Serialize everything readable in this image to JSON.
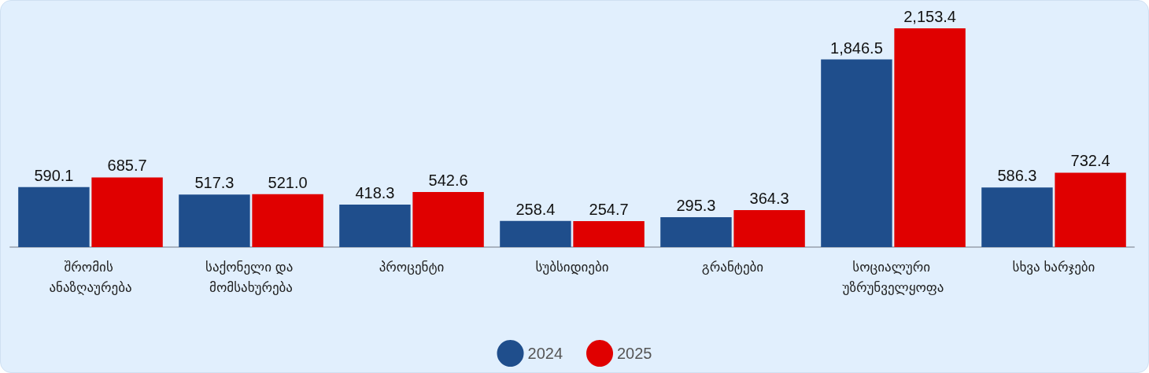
{
  "chart_data": {
    "type": "bar",
    "categories": [
      "შრომის ანაზღაურება",
      "საქონელი და მომსახურება",
      "პროცენტი",
      "სუბსიდიები",
      "გრანტები",
      "სოციალური უზრუნველყოფა",
      "სხვა ხარჯები"
    ],
    "series": [
      {
        "name": "2024",
        "color": "#1f4e8c",
        "values": [
          590.1,
          517.3,
          418.3,
          258.4,
          295.3,
          1846.5,
          586.3
        ],
        "value_labels": [
          "590.1",
          "517.3",
          "418.3",
          "258.4",
          "295.3",
          "1,846.5",
          "586.3"
        ]
      },
      {
        "name": "2025",
        "color": "#e00000",
        "values": [
          685.7,
          521.0,
          542.6,
          254.7,
          364.3,
          2153.4,
          732.4
        ],
        "value_labels": [
          "685.7",
          "521.0",
          "542.6",
          "254.7",
          "364.3",
          "2,153.4",
          "732.4"
        ]
      }
    ],
    "legend": "bottom",
    "tick_labels": "x"
  }
}
